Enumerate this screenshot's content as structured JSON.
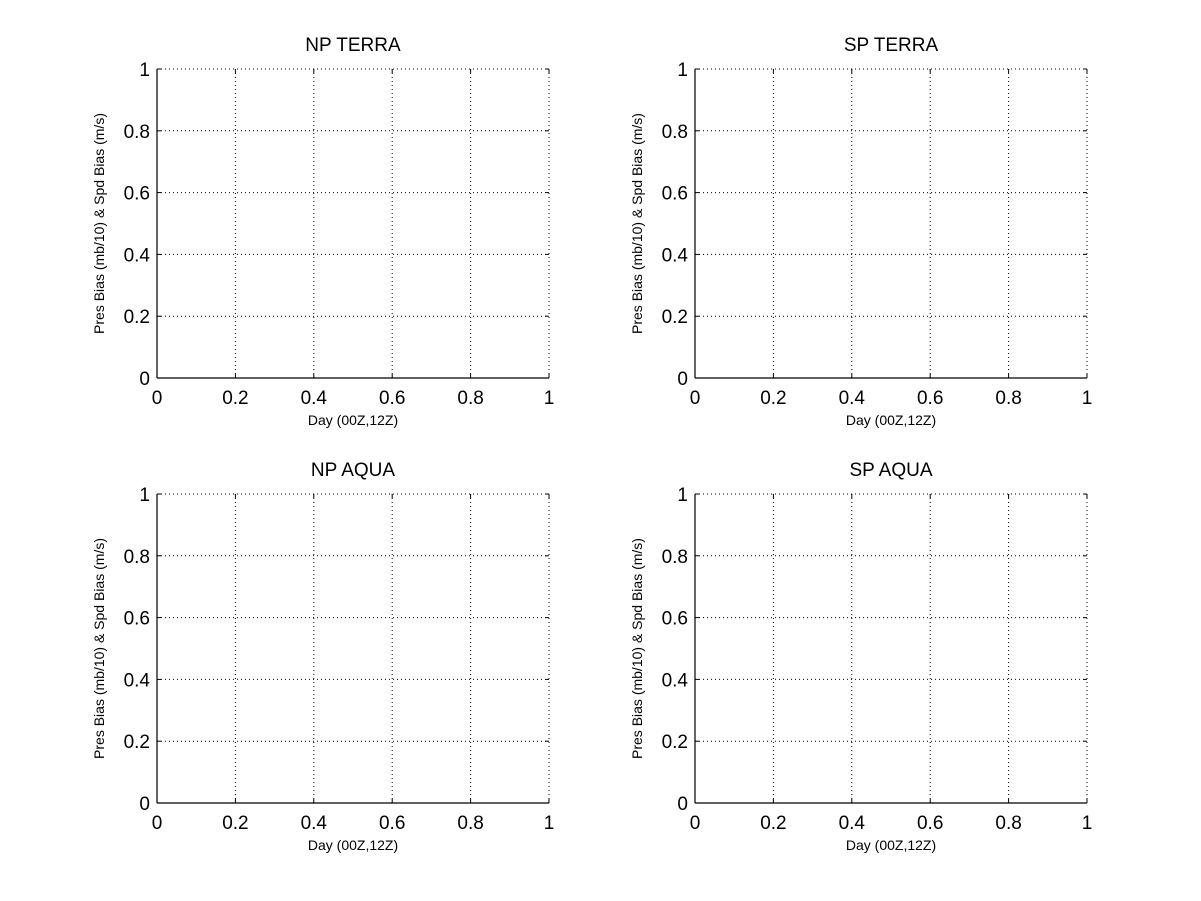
{
  "figure_background": "#ffffff",
  "axis_color": "#000000",
  "grid_color": "#000000",
  "chart_data": [
    {
      "type": "line",
      "title": "NP TERRA",
      "xlabel": "Day (00Z,12Z)",
      "ylabel": "Pres Bias (mb/10) & Spd Bias (m/s)",
      "xlim": [
        0,
        1
      ],
      "ylim": [
        0,
        1
      ],
      "xticks": [
        "0",
        "0.2",
        "0.4",
        "0.6",
        "0.8",
        "1"
      ],
      "yticks": [
        "0",
        "0.2",
        "0.4",
        "0.6",
        "0.8",
        "1"
      ],
      "grid": true,
      "series": []
    },
    {
      "type": "line",
      "title": "SP TERRA",
      "xlabel": "Day (00Z,12Z)",
      "ylabel": "Pres Bias (mb/10) & Spd Bias (m/s)",
      "xlim": [
        0,
        1
      ],
      "ylim": [
        0,
        1
      ],
      "xticks": [
        "0",
        "0.2",
        "0.4",
        "0.6",
        "0.8",
        "1"
      ],
      "yticks": [
        "0",
        "0.2",
        "0.4",
        "0.6",
        "0.8",
        "1"
      ],
      "grid": true,
      "series": []
    },
    {
      "type": "line",
      "title": "NP AQUA",
      "xlabel": "Day (00Z,12Z)",
      "ylabel": "Pres Bias (mb/10) & Spd Bias (m/s)",
      "xlim": [
        0,
        1
      ],
      "ylim": [
        0,
        1
      ],
      "xticks": [
        "0",
        "0.2",
        "0.4",
        "0.6",
        "0.8",
        "1"
      ],
      "yticks": [
        "0",
        "0.2",
        "0.4",
        "0.6",
        "0.8",
        "1"
      ],
      "grid": true,
      "series": []
    },
    {
      "type": "line",
      "title": "SP AQUA",
      "xlabel": "Day (00Z,12Z)",
      "ylabel": "Pres Bias (mb/10) & Spd Bias (m/s)",
      "xlim": [
        0,
        1
      ],
      "ylim": [
        0,
        1
      ],
      "xticks": [
        "0",
        "0.2",
        "0.4",
        "0.6",
        "0.8",
        "1"
      ],
      "yticks": [
        "0",
        "0.2",
        "0.4",
        "0.6",
        "0.8",
        "1"
      ],
      "grid": true,
      "series": []
    }
  ]
}
